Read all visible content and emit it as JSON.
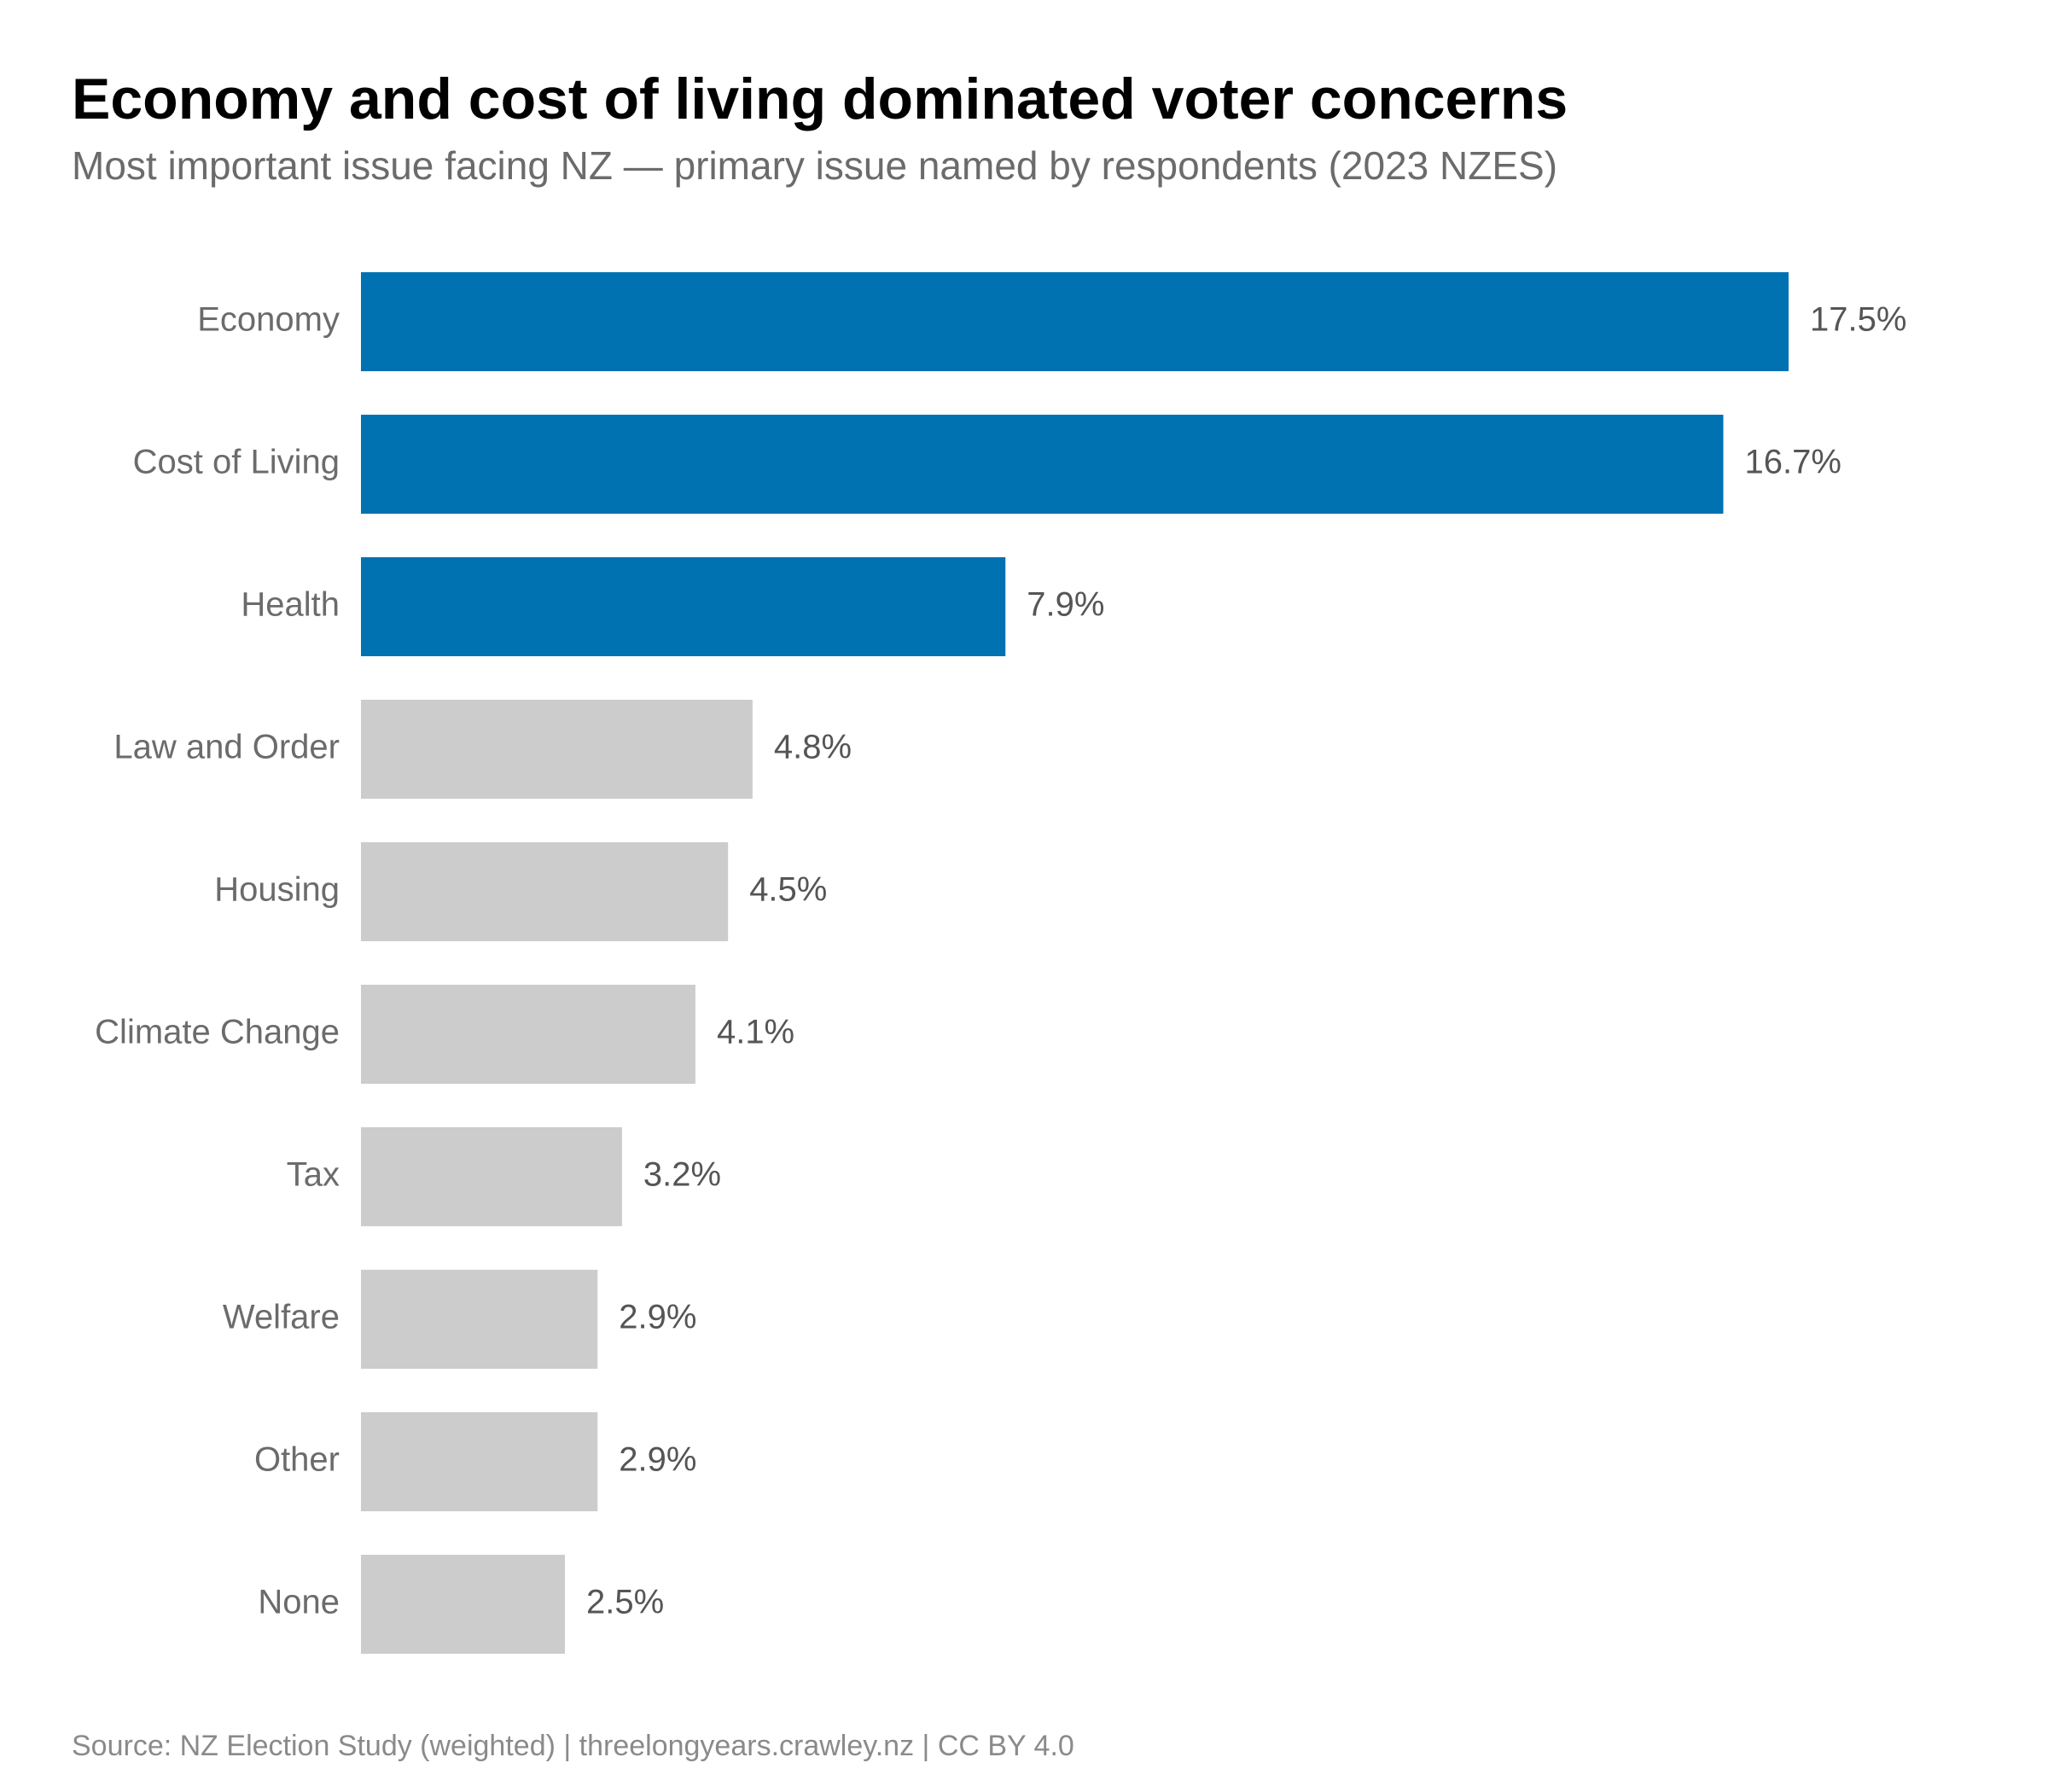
{
  "chart_data": {
    "type": "bar",
    "orientation": "horizontal",
    "title": "Economy and cost of living dominated voter concerns",
    "subtitle": "Most important issue facing NZ — primary issue named by respondents (2023 NZES)",
    "categories": [
      "Economy",
      "Cost of Living",
      "Health",
      "Law and Order",
      "Housing",
      "Climate Change",
      "Tax",
      "Welfare",
      "Other",
      "None"
    ],
    "values": [
      17.5,
      16.7,
      7.9,
      4.8,
      4.5,
      4.1,
      3.2,
      2.9,
      2.9,
      2.5
    ],
    "value_labels": [
      "17.5%",
      "16.7%",
      "7.9%",
      "4.8%",
      "4.5%",
      "4.1%",
      "3.2%",
      "2.9%",
      "2.9%",
      "2.5%"
    ],
    "colors": [
      "#0072b2",
      "#0072b2",
      "#0072b2",
      "#cccccc",
      "#cccccc",
      "#cccccc",
      "#cccccc",
      "#cccccc",
      "#cccccc",
      "#cccccc"
    ],
    "source": "Source: NZ Election Study (weighted) | threelongyears.crawley.nz | CC BY 4.0"
  }
}
